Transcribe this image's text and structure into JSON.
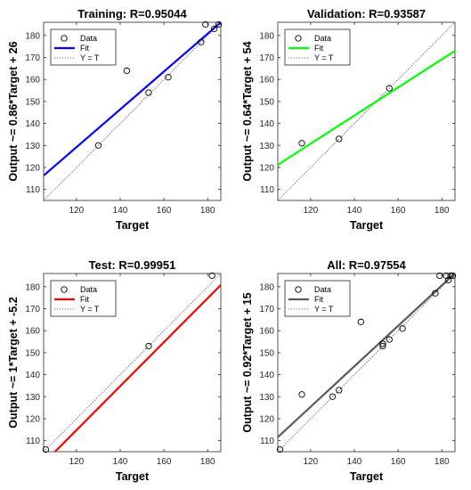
{
  "chart_data": [
    {
      "type": "scatter",
      "title": "Training: R=0.95044",
      "xlabel": "Target",
      "ylabel": "Output ~= 0.86*Target + 26",
      "xlim": [
        105,
        186
      ],
      "ylim": [
        105,
        186
      ],
      "xticks": [
        120,
        140,
        160,
        180
      ],
      "yticks": [
        110,
        120,
        130,
        140,
        150,
        160,
        170,
        180
      ],
      "fit": {
        "slope": 0.86,
        "intercept": 26,
        "color": "#0000ff"
      },
      "identity": true,
      "series": [
        {
          "name": "Data",
          "x": [
            130,
            143,
            153,
            162,
            177,
            179,
            183,
            185
          ],
          "y": [
            130,
            164,
            154,
            161,
            177,
            185,
            183,
            185
          ]
        }
      ],
      "legend": [
        "Data",
        "Fit",
        "Y = T"
      ],
      "legend_position": "top-left"
    },
    {
      "type": "scatter",
      "title": "Validation: R=0.93587",
      "xlabel": "Target",
      "ylabel": "Output ~= 0.64*Target + 54",
      "xlim": [
        105,
        186
      ],
      "ylim": [
        105,
        186
      ],
      "xticks": [
        120,
        140,
        160,
        180
      ],
      "yticks": [
        110,
        120,
        130,
        140,
        150,
        160,
        170,
        180
      ],
      "fit": {
        "slope": 0.64,
        "intercept": 54,
        "color": "#00ff00"
      },
      "identity": true,
      "series": [
        {
          "name": "Data",
          "x": [
            116,
            133,
            156
          ],
          "y": [
            131,
            133,
            156
          ]
        }
      ],
      "legend": [
        "Data",
        "Fit",
        "Y = T"
      ],
      "legend_position": "top-left"
    },
    {
      "type": "scatter",
      "title": "Test: R=0.99951",
      "xlabel": "Target",
      "ylabel": "Output ~= 1*Target + -5.2",
      "xlim": [
        105,
        186
      ],
      "ylim": [
        105,
        186
      ],
      "xticks": [
        120,
        140,
        160,
        180
      ],
      "yticks": [
        110,
        120,
        130,
        140,
        150,
        160,
        170,
        180
      ],
      "fit": {
        "slope": 1.0,
        "intercept": -5.2,
        "color": "#ff0000"
      },
      "identity": true,
      "series": [
        {
          "name": "Data",
          "x": [
            106,
            153,
            182
          ],
          "y": [
            106,
            153,
            185
          ]
        }
      ],
      "legend": [
        "Data",
        "Fit",
        "Y = T"
      ],
      "legend_position": "top-left"
    },
    {
      "type": "scatter",
      "title": "All: R=0.97554",
      "xlabel": "Target",
      "ylabel": "Output ~= 0.92*Target + 15",
      "xlim": [
        105,
        186
      ],
      "ylim": [
        105,
        186
      ],
      "xticks": [
        120,
        140,
        160,
        180
      ],
      "yticks": [
        110,
        120,
        130,
        140,
        150,
        160,
        170,
        180
      ],
      "fit": {
        "slope": 0.92,
        "intercept": 15,
        "color": "#595959"
      },
      "identity": true,
      "series": [
        {
          "name": "Data",
          "x": [
            106,
            116,
            130,
            133,
            143,
            153,
            153,
            156,
            162,
            177,
            179,
            182,
            183,
            184,
            185
          ],
          "y": [
            106,
            131,
            130,
            133,
            164,
            153,
            154,
            156,
            161,
            177,
            185,
            185,
            183,
            185,
            185
          ]
        }
      ],
      "legend": [
        "Data",
        "Fit",
        "Y = T"
      ],
      "legend_position": "top-left"
    }
  ]
}
